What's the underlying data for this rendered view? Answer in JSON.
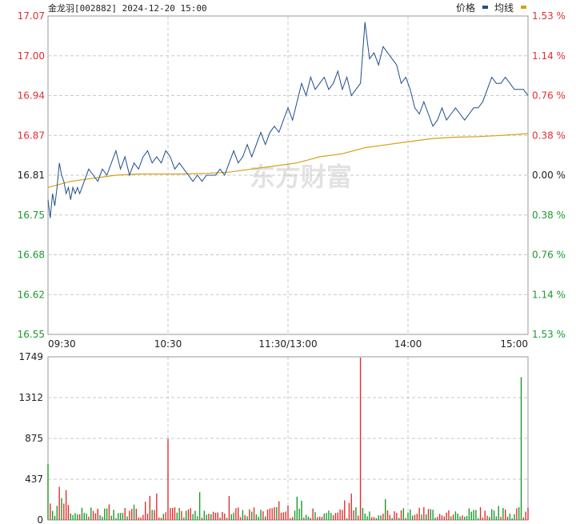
{
  "header": {
    "title": "金龙羽[002882] 2024-12-20 15:00",
    "legend": [
      {
        "label": "价格",
        "color": "#1f4e8c"
      },
      {
        "label": "均线",
        "color": "#d4a017"
      }
    ]
  },
  "watermark": "东方财富",
  "colors": {
    "price": "#1f4e8c",
    "avg": "#d4a017",
    "up": "#e0302f",
    "down": "#1a9a2a",
    "grid": "#c8c8c8",
    "border": "#999999"
  },
  "chart_data": [
    {
      "type": "line",
      "name": "price",
      "x_ticks": [
        "09:30",
        "10:30",
        "11:30/13:00",
        "14:00",
        "15:00"
      ],
      "y_ticks_left": [
        "17.07",
        "17.00",
        "16.94",
        "16.87",
        "16.81",
        "16.75",
        "16.68",
        "16.62",
        "16.55"
      ],
      "y_ticks_right": [
        "1.53 %",
        "1.14 %",
        "0.76 %",
        "0.38 %",
        "0.00 %",
        "0.38 %",
        "0.76 %",
        "1.14 %",
        "1.53 %"
      ],
      "ylim": [
        16.55,
        17.07
      ],
      "y_ticks_left_colors": [
        "up",
        "up",
        "up",
        "up",
        "flat",
        "down",
        "down",
        "down",
        "down"
      ],
      "price_points": [
        [
          0,
          16.77
        ],
        [
          2,
          16.74
        ],
        [
          4,
          16.78
        ],
        [
          6,
          16.76
        ],
        [
          8,
          16.79
        ],
        [
          10,
          16.83
        ],
        [
          12,
          16.81
        ],
        [
          14,
          16.8
        ],
        [
          16,
          16.78
        ],
        [
          18,
          16.79
        ],
        [
          20,
          16.77
        ],
        [
          22,
          16.79
        ],
        [
          24,
          16.78
        ],
        [
          26,
          16.79
        ],
        [
          28,
          16.78
        ],
        [
          30,
          16.79
        ],
        [
          32,
          16.8
        ],
        [
          36,
          16.82
        ],
        [
          40,
          16.81
        ],
        [
          44,
          16.8
        ],
        [
          48,
          16.82
        ],
        [
          52,
          16.81
        ],
        [
          56,
          16.83
        ],
        [
          60,
          16.85
        ],
        [
          64,
          16.82
        ],
        [
          68,
          16.84
        ],
        [
          72,
          16.81
        ],
        [
          76,
          16.83
        ],
        [
          80,
          16.82
        ],
        [
          84,
          16.84
        ],
        [
          88,
          16.85
        ],
        [
          92,
          16.83
        ],
        [
          96,
          16.84
        ],
        [
          100,
          16.83
        ],
        [
          104,
          16.85
        ],
        [
          108,
          16.84
        ],
        [
          112,
          16.82
        ],
        [
          116,
          16.83
        ],
        [
          120,
          16.82
        ],
        [
          124,
          16.81
        ],
        [
          128,
          16.8
        ],
        [
          132,
          16.81
        ],
        [
          136,
          16.8
        ],
        [
          140,
          16.81
        ],
        [
          144,
          16.81
        ],
        [
          148,
          16.81
        ],
        [
          152,
          16.82
        ],
        [
          156,
          16.81
        ],
        [
          160,
          16.83
        ],
        [
          164,
          16.85
        ],
        [
          168,
          16.83
        ],
        [
          172,
          16.84
        ],
        [
          176,
          16.86
        ],
        [
          180,
          16.84
        ],
        [
          184,
          16.86
        ],
        [
          188,
          16.88
        ],
        [
          192,
          16.86
        ],
        [
          196,
          16.88
        ],
        [
          200,
          16.89
        ],
        [
          204,
          16.88
        ],
        [
          208,
          16.9
        ],
        [
          212,
          16.92
        ],
        [
          216,
          16.9
        ],
        [
          220,
          16.93
        ],
        [
          224,
          16.96
        ],
        [
          228,
          16.94
        ],
        [
          232,
          16.97
        ],
        [
          236,
          16.95
        ],
        [
          240,
          16.96
        ],
        [
          244,
          16.97
        ],
        [
          248,
          16.95
        ],
        [
          252,
          16.96
        ],
        [
          256,
          16.98
        ],
        [
          260,
          16.95
        ],
        [
          264,
          16.97
        ],
        [
          268,
          16.94
        ],
        [
          272,
          16.95
        ],
        [
          276,
          16.96
        ],
        [
          280,
          17.06
        ],
        [
          284,
          17.0
        ],
        [
          288,
          17.01
        ],
        [
          292,
          16.99
        ],
        [
          296,
          17.02
        ],
        [
          300,
          17.01
        ],
        [
          304,
          17.0
        ],
        [
          308,
          16.99
        ],
        [
          312,
          16.96
        ],
        [
          316,
          16.97
        ],
        [
          320,
          16.95
        ],
        [
          324,
          16.92
        ],
        [
          328,
          16.91
        ],
        [
          332,
          16.93
        ],
        [
          336,
          16.91
        ],
        [
          340,
          16.89
        ],
        [
          344,
          16.9
        ],
        [
          348,
          16.92
        ],
        [
          352,
          16.9
        ],
        [
          356,
          16.91
        ],
        [
          360,
          16.92
        ],
        [
          364,
          16.91
        ],
        [
          368,
          16.9
        ],
        [
          372,
          16.91
        ],
        [
          376,
          16.92
        ],
        [
          380,
          16.92
        ],
        [
          384,
          16.93
        ],
        [
          388,
          16.95
        ],
        [
          392,
          16.97
        ],
        [
          396,
          16.96
        ],
        [
          400,
          16.96
        ],
        [
          404,
          16.97
        ],
        [
          408,
          16.96
        ],
        [
          412,
          16.95
        ],
        [
          416,
          16.95
        ],
        [
          420,
          16.95
        ],
        [
          424,
          16.94
        ]
      ],
      "avg_points": [
        [
          0,
          16.79
        ],
        [
          20,
          16.8
        ],
        [
          40,
          16.805
        ],
        [
          60,
          16.81
        ],
        [
          80,
          16.812
        ],
        [
          100,
          16.812
        ],
        [
          120,
          16.812
        ],
        [
          140,
          16.813
        ],
        [
          160,
          16.815
        ],
        [
          180,
          16.82
        ],
        [
          200,
          16.825
        ],
        [
          220,
          16.83
        ],
        [
          240,
          16.84
        ],
        [
          260,
          16.845
        ],
        [
          280,
          16.855
        ],
        [
          300,
          16.86
        ],
        [
          320,
          16.865
        ],
        [
          340,
          16.87
        ],
        [
          360,
          16.872
        ],
        [
          380,
          16.873
        ],
        [
          400,
          16.875
        ],
        [
          424,
          16.878
        ]
      ],
      "x_max": 424
    },
    {
      "type": "bar",
      "name": "volume",
      "y_ticks": [
        "1749",
        "1312",
        "875",
        "437",
        "0"
      ],
      "ylim": [
        0,
        1749
      ],
      "spikes": [
        {
          "x": 0,
          "value": 600,
          "dir": "down"
        },
        {
          "x": 106,
          "value": 870,
          "dir": "up"
        },
        {
          "x": 276,
          "value": 1740,
          "dir": "up"
        },
        {
          "x": 305,
          "value": 870,
          "dir": "down"
        },
        {
          "x": 418,
          "value": 1530,
          "dir": "down"
        }
      ]
    }
  ]
}
